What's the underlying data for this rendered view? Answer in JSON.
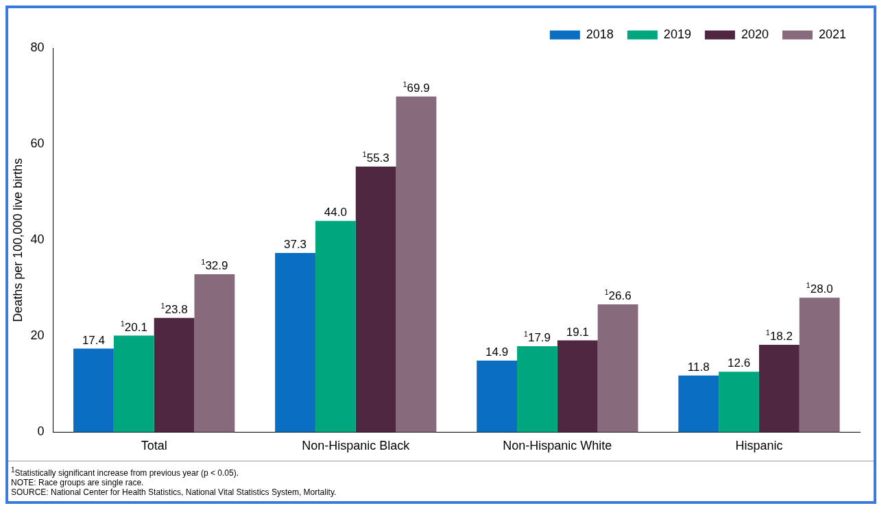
{
  "chart_data": {
    "type": "bar",
    "ylabel": "Deaths per 100,000 live births",
    "categories": [
      "Total",
      "Non-Hispanic Black",
      "Non-Hispanic White",
      "Hispanic"
    ],
    "series": [
      {
        "name": "2018",
        "color": "#0a6fc2",
        "values": [
          17.4,
          37.3,
          14.9,
          11.8
        ],
        "value_labels": [
          "17.4",
          "37.3",
          "14.9",
          "11.8"
        ]
      },
      {
        "name": "2019",
        "color": "#00a77e",
        "values": [
          20.1,
          44.0,
          17.9,
          12.6
        ],
        "value_labels": [
          "$^{1}$20.1",
          "44.0",
          "$^{1}$17.9",
          "12.6"
        ]
      },
      {
        "name": "2020",
        "color": "#4f2740",
        "values": [
          23.8,
          55.3,
          19.1,
          18.2
        ],
        "value_labels": [
          "$^{1}$23.8",
          "$^{1}$55.3",
          "19.1",
          "$^{1}$18.2"
        ]
      },
      {
        "name": "2021",
        "color": "#876a7b",
        "values": [
          32.9,
          69.9,
          26.6,
          28.0
        ],
        "value_labels": [
          "$^{1}$32.9",
          "$^{1}$69.9",
          "$^{1}$26.6",
          "$^{1}$28.0"
        ]
      }
    ],
    "ylim": [
      0,
      80
    ],
    "yticks": [
      0,
      20,
      40,
      60,
      80
    ],
    "grid": false,
    "legend": "top right",
    "annotations": [
      "$^{1}$Statistically significant increase from previous year (p < 0.05).",
      "NOTE: Race groups are single race.",
      "SOURCE: National Center for Health Statistics, National Vital Statistics System, Mortality."
    ]
  }
}
